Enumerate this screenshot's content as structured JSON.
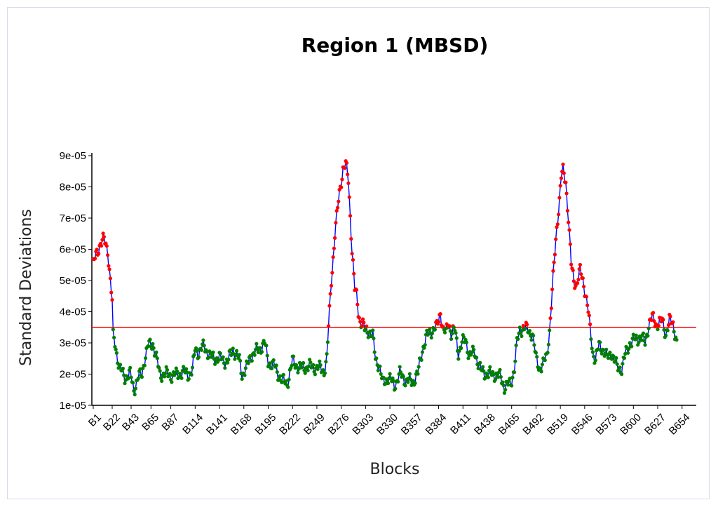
{
  "chart_data": {
    "type": "line",
    "title": "Region 1 (MBSD)",
    "xlabel": "Blocks",
    "ylabel": "Standard Deviations",
    "ylim": [
      1e-05,
      9e-05
    ],
    "y_ticks": [
      "1e-05",
      "2e-05",
      "3e-05",
      "4e-05",
      "5e-05",
      "6e-05",
      "7e-05",
      "8e-05",
      "9e-05"
    ],
    "x_ticks": [
      "B1",
      "B22",
      "B43",
      "B65",
      "B87",
      "B114",
      "B141",
      "B168",
      "B195",
      "B222",
      "B249",
      "B276",
      "B303",
      "B330",
      "B357",
      "B384",
      "B411",
      "B438",
      "B465",
      "B492",
      "B519",
      "B546",
      "B573",
      "B600",
      "B627",
      "B654"
    ],
    "threshold": 3.5e-05,
    "colors": {
      "line": "#0000ff",
      "threshold": "#ff0000",
      "above": "#ff0000",
      "below": "#008000"
    },
    "grid": false,
    "legend": "none",
    "keypoints": [
      [
        1,
        5.5e-05
      ],
      [
        5,
        5.9e-05
      ],
      [
        9,
        6.2e-05
      ],
      [
        13,
        6.3e-05
      ],
      [
        17,
        6e-05
      ],
      [
        20,
        5e-05
      ],
      [
        22,
        4.3e-05
      ],
      [
        23,
        3.2e-05
      ],
      [
        25,
        3e-05
      ],
      [
        30,
        2.2e-05
      ],
      [
        36,
        1.9e-05
      ],
      [
        42,
        2e-05
      ],
      [
        46,
        1.5e-05
      ],
      [
        51,
        1.9e-05
      ],
      [
        55,
        2e-05
      ],
      [
        58,
        2.5e-05
      ],
      [
        62,
        2.9e-05
      ],
      [
        67,
        3e-05
      ],
      [
        71,
        2.5e-05
      ],
      [
        75,
        2e-05
      ],
      [
        82,
        2e-05
      ],
      [
        90,
        1.95e-05
      ],
      [
        100,
        2.05e-05
      ],
      [
        107,
        2e-05
      ],
      [
        111,
        2.1e-05
      ],
      [
        114,
        2.8e-05
      ],
      [
        118,
        2.7e-05
      ],
      [
        124,
        2.9e-05
      ],
      [
        131,
        2.55e-05
      ],
      [
        141,
        2.5e-05
      ],
      [
        150,
        2.4e-05
      ],
      [
        156,
        2.8e-05
      ],
      [
        163,
        2.45e-05
      ],
      [
        166,
        2e-05
      ],
      [
        171,
        2.2e-05
      ],
      [
        176,
        2.6e-05
      ],
      [
        185,
        2.8e-05
      ],
      [
        191,
        3e-05
      ],
      [
        195,
        2.4e-05
      ],
      [
        202,
        2.25e-05
      ],
      [
        210,
        1.8e-05
      ],
      [
        216,
        1.7e-05
      ],
      [
        222,
        2.4e-05
      ],
      [
        230,
        2.2e-05
      ],
      [
        240,
        2.25e-05
      ],
      [
        251,
        2.2e-05
      ],
      [
        257,
        2.1e-05
      ],
      [
        260,
        2.5e-05
      ],
      [
        262,
        3.5e-05
      ],
      [
        265,
        5e-05
      ],
      [
        269,
        6.5e-05
      ],
      [
        274,
        7.8e-05
      ],
      [
        278,
        8.6e-05
      ],
      [
        281,
        8.7e-05
      ],
      [
        284,
        8.2e-05
      ],
      [
        288,
        6e-05
      ],
      [
        291,
        4.7e-05
      ],
      [
        293,
        4.5e-05
      ],
      [
        295,
        4e-05
      ],
      [
        297,
        3.7e-05
      ],
      [
        300,
        3.6e-05
      ],
      [
        302,
        3.4e-05
      ],
      [
        307,
        3.4e-05
      ],
      [
        311,
        3.2e-05
      ],
      [
        314,
        2.5e-05
      ],
      [
        318,
        2.3e-05
      ],
      [
        322,
        1.7e-05
      ],
      [
        328,
        1.9e-05
      ],
      [
        335,
        1.65e-05
      ],
      [
        341,
        2e-05
      ],
      [
        348,
        1.8e-05
      ],
      [
        355,
        1.75e-05
      ],
      [
        361,
        2e-05
      ],
      [
        366,
        2.8e-05
      ],
      [
        371,
        3.2e-05
      ],
      [
        376,
        3.4e-05
      ],
      [
        382,
        3.5e-05
      ],
      [
        386,
        4e-05
      ],
      [
        389,
        3.4e-05
      ],
      [
        392,
        3.3e-05
      ],
      [
        395,
        3.7e-05
      ],
      [
        398,
        3.3e-05
      ],
      [
        402,
        3.4e-05
      ],
      [
        406,
        2.7e-05
      ],
      [
        410,
        3e-05
      ],
      [
        414,
        3.1e-05
      ],
      [
        418,
        2.6e-05
      ],
      [
        424,
        2.7e-05
      ],
      [
        431,
        2.1e-05
      ],
      [
        438,
        2e-05
      ],
      [
        446,
        2e-05
      ],
      [
        453,
        1.9e-05
      ],
      [
        457,
        1.6e-05
      ],
      [
        464,
        1.7e-05
      ],
      [
        468,
        2.2e-05
      ],
      [
        471,
        3e-05
      ],
      [
        474,
        3.4e-05
      ],
      [
        478,
        3.5e-05
      ],
      [
        483,
        3.4e-05
      ],
      [
        488,
        3.3e-05
      ],
      [
        492,
        2.5e-05
      ],
      [
        496,
        2.2e-05
      ],
      [
        500,
        2.3e-05
      ],
      [
        504,
        2.6e-05
      ],
      [
        507,
        3.4e-05
      ],
      [
        509,
        4.2e-05
      ],
      [
        512,
        5.5e-05
      ],
      [
        515,
        6.7e-05
      ],
      [
        518,
        7.6e-05
      ],
      [
        520,
        8.3e-05
      ],
      [
        522,
        8.5e-05
      ],
      [
        525,
        8.2e-05
      ],
      [
        528,
        7e-05
      ],
      [
        531,
        5.5e-05
      ],
      [
        534,
        5e-05
      ],
      [
        537,
        4.9e-05
      ],
      [
        541,
        5.3e-05
      ],
      [
        544,
        5e-05
      ],
      [
        547,
        4.6e-05
      ],
      [
        550,
        4e-05
      ],
      [
        552,
        3.4e-05
      ],
      [
        555,
        2.7e-05
      ],
      [
        558,
        2.5e-05
      ],
      [
        562,
        2.9e-05
      ],
      [
        567,
        2.8e-05
      ],
      [
        571,
        2.5e-05
      ],
      [
        576,
        2.7e-05
      ],
      [
        582,
        2.2e-05
      ],
      [
        587,
        2.2e-05
      ],
      [
        591,
        2.6e-05
      ],
      [
        596,
        3e-05
      ],
      [
        602,
        3.1e-05
      ],
      [
        608,
        3.2e-05
      ],
      [
        613,
        3e-05
      ],
      [
        617,
        3.6e-05
      ],
      [
        621,
        3.8e-05
      ],
      [
        626,
        3.6e-05
      ],
      [
        632,
        3.7e-05
      ],
      [
        636,
        3.3e-05
      ],
      [
        640,
        3.7e-05
      ],
      [
        644,
        3.6e-05
      ],
      [
        648,
        3.1e-05
      ]
    ]
  }
}
